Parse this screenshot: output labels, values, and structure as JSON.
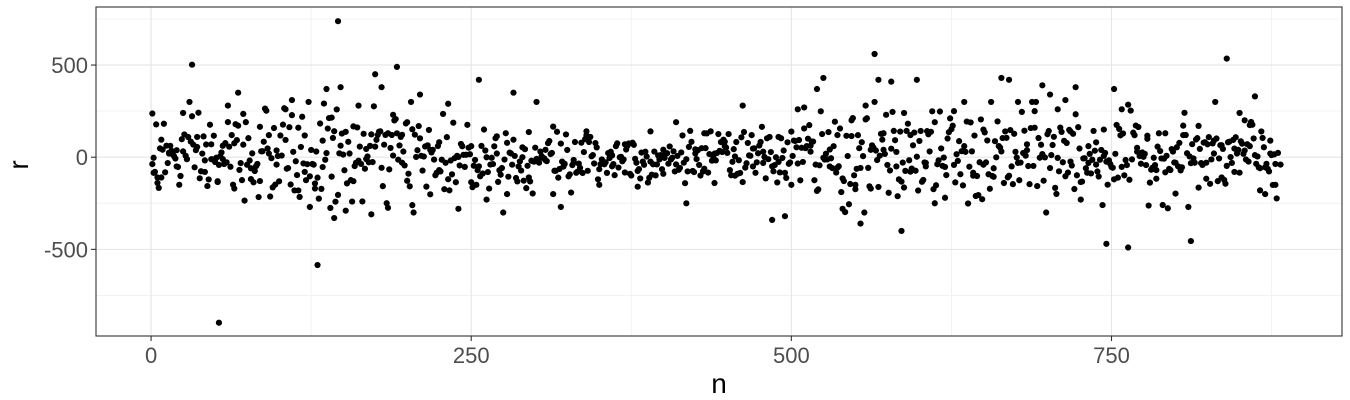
{
  "chart_data": {
    "type": "scatter",
    "title": "",
    "xlabel": "n",
    "ylabel": "r",
    "xlim": [
      -43,
      930
    ],
    "ylim": [
      -970,
      815
    ],
    "xticks": [
      0,
      250,
      500,
      750
    ],
    "xtick_labels": [
      "0",
      "250",
      "500",
      "750"
    ],
    "yticks": [
      -500,
      0,
      500
    ],
    "ytick_labels": [
      "-500",
      "0",
      "500"
    ],
    "grid": true,
    "legend": "none",
    "point_color": "#000000",
    "n_points": 880,
    "highlighted_points": [
      {
        "x": 1,
        "y": 237
      },
      {
        "x": 2,
        "y": -3
      },
      {
        "x": 5,
        "y": -110
      },
      {
        "x": 8,
        "y": 95
      },
      {
        "x": 14,
        "y": 20
      },
      {
        "x": 20,
        "y": -50
      },
      {
        "x": 25,
        "y": 240
      },
      {
        "x": 28,
        "y": -10
      },
      {
        "x": 32,
        "y": 502
      },
      {
        "x": 36,
        "y": 110
      },
      {
        "x": 42,
        "y": -80
      },
      {
        "x": 47,
        "y": 70
      },
      {
        "x": 52,
        "y": -130
      },
      {
        "x": 53,
        "y": -898
      },
      {
        "x": 56,
        "y": -10
      },
      {
        "x": 60,
        "y": 280
      },
      {
        "x": 65,
        "y": -170
      },
      {
        "x": 68,
        "y": 350
      },
      {
        "x": 72,
        "y": 235
      },
      {
        "x": 78,
        "y": -60
      },
      {
        "x": 85,
        "y": 165
      },
      {
        "x": 92,
        "y": 20
      },
      {
        "x": 98,
        "y": -40
      },
      {
        "x": 105,
        "y": 260
      },
      {
        "x": 110,
        "y": 310
      },
      {
        "x": 115,
        "y": 160
      },
      {
        "x": 120,
        "y": -80
      },
      {
        "x": 124,
        "y": -270
      },
      {
        "x": 128,
        "y": -170
      },
      {
        "x": 130,
        "y": -585
      },
      {
        "x": 134,
        "y": 90
      },
      {
        "x": 137,
        "y": 370
      },
      {
        "x": 141,
        "y": 215
      },
      {
        "x": 143,
        "y": -330
      },
      {
        "x": 146,
        "y": 738
      },
      {
        "x": 148,
        "y": 380
      },
      {
        "x": 152,
        "y": -290
      },
      {
        "x": 158,
        "y": -130
      },
      {
        "x": 162,
        "y": 280
      },
      {
        "x": 168,
        "y": -10
      },
      {
        "x": 172,
        "y": -310
      },
      {
        "x": 175,
        "y": 450
      },
      {
        "x": 180,
        "y": 380
      },
      {
        "x": 185,
        "y": 130
      },
      {
        "x": 189,
        "y": 230
      },
      {
        "x": 192,
        "y": 490
      },
      {
        "x": 196,
        "y": -30
      },
      {
        "x": 200,
        "y": 190
      },
      {
        "x": 204,
        "y": -260
      },
      {
        "x": 210,
        "y": 340
      },
      {
        "x": 218,
        "y": 40
      },
      {
        "x": 225,
        "y": -70
      },
      {
        "x": 232,
        "y": 290
      },
      {
        "x": 240,
        "y": -280
      },
      {
        "x": 250,
        "y": 60
      },
      {
        "x": 256,
        "y": 420
      },
      {
        "x": 262,
        "y": -230
      },
      {
        "x": 270,
        "y": 20
      },
      {
        "x": 278,
        "y": -200
      },
      {
        "x": 283,
        "y": 350
      },
      {
        "x": 290,
        "y": 0
      },
      {
        "x": 295,
        "y": -110
      },
      {
        "x": 301,
        "y": 300
      },
      {
        "x": 308,
        "y": 40
      },
      {
        "x": 314,
        "y": -200
      },
      {
        "x": 320,
        "y": -270
      },
      {
        "x": 330,
        "y": -30
      },
      {
        "x": 340,
        "y": 120
      },
      {
        "x": 350,
        "y": -150
      },
      {
        "x": 360,
        "y": 10
      },
      {
        "x": 370,
        "y": 70
      },
      {
        "x": 380,
        "y": -160
      },
      {
        "x": 390,
        "y": 140
      },
      {
        "x": 400,
        "y": -90
      },
      {
        "x": 410,
        "y": 190
      },
      {
        "x": 418,
        "y": -250
      },
      {
        "x": 425,
        "y": 20
      },
      {
        "x": 432,
        "y": 130
      },
      {
        "x": 440,
        "y": -140
      },
      {
        "x": 448,
        "y": 60
      },
      {
        "x": 456,
        "y": -100
      },
      {
        "x": 462,
        "y": 280
      },
      {
        "x": 470,
        "y": -50
      },
      {
        "x": 478,
        "y": 30
      },
      {
        "x": 485,
        "y": -340
      },
      {
        "x": 490,
        "y": 110
      },
      {
        "x": 495,
        "y": -320
      },
      {
        "x": 500,
        "y": -150
      },
      {
        "x": 505,
        "y": 260
      },
      {
        "x": 510,
        "y": 270
      },
      {
        "x": 515,
        "y": 30
      },
      {
        "x": 520,
        "y": 370
      },
      {
        "x": 525,
        "y": 430
      },
      {
        "x": 530,
        "y": -50
      },
      {
        "x": 536,
        "y": 120
      },
      {
        "x": 540,
        "y": -280
      },
      {
        "x": 547,
        "y": 200
      },
      {
        "x": 550,
        "y": -150
      },
      {
        "x": 554,
        "y": -360
      },
      {
        "x": 558,
        "y": 280
      },
      {
        "x": 562,
        "y": 40
      },
      {
        "x": 565,
        "y": 560
      },
      {
        "x": 568,
        "y": 420
      },
      {
        "x": 572,
        "y": 130
      },
      {
        "x": 578,
        "y": 410
      },
      {
        "x": 582,
        "y": -50
      },
      {
        "x": 586,
        "y": -400
      },
      {
        "x": 588,
        "y": 240
      },
      {
        "x": 593,
        "y": 120
      },
      {
        "x": 598,
        "y": 420
      },
      {
        "x": 605,
        "y": -50
      },
      {
        "x": 612,
        "y": 190
      },
      {
        "x": 620,
        "y": -220
      },
      {
        "x": 627,
        "y": 250
      },
      {
        "x": 635,
        "y": 60
      },
      {
        "x": 642,
        "y": -100
      },
      {
        "x": 650,
        "y": 150
      },
      {
        "x": 658,
        "y": -60
      },
      {
        "x": 664,
        "y": 430
      },
      {
        "x": 670,
        "y": 420
      },
      {
        "x": 677,
        "y": 300
      },
      {
        "x": 684,
        "y": 70
      },
      {
        "x": 690,
        "y": 250
      },
      {
        "x": 696,
        "y": 390
      },
      {
        "x": 702,
        "y": 340
      },
      {
        "x": 708,
        "y": 260
      },
      {
        "x": 714,
        "y": 310
      },
      {
        "x": 718,
        "y": 140
      },
      {
        "x": 722,
        "y": 380
      },
      {
        "x": 726,
        "y": -230
      },
      {
        "x": 732,
        "y": 60
      },
      {
        "x": 738,
        "y": -40
      },
      {
        "x": 744,
        "y": 150
      },
      {
        "x": 746,
        "y": -470
      },
      {
        "x": 752,
        "y": 370
      },
      {
        "x": 758,
        "y": 260
      },
      {
        "x": 763,
        "y": -490
      },
      {
        "x": 770,
        "y": 30
      },
      {
        "x": 778,
        "y": 100
      },
      {
        "x": 785,
        "y": -70
      },
      {
        "x": 792,
        "y": 130
      },
      {
        "x": 800,
        "y": -30
      },
      {
        "x": 806,
        "y": 120
      },
      {
        "x": 812,
        "y": -455
      },
      {
        "x": 818,
        "y": 170
      },
      {
        "x": 824,
        "y": -30
      },
      {
        "x": 830,
        "y": 20
      },
      {
        "x": 836,
        "y": -110
      },
      {
        "x": 840,
        "y": 535
      },
      {
        "x": 846,
        "y": -80
      },
      {
        "x": 850,
        "y": 240
      },
      {
        "x": 854,
        "y": 200
      },
      {
        "x": 858,
        "y": 60
      },
      {
        "x": 862,
        "y": 330
      },
      {
        "x": 866,
        "y": -180
      },
      {
        "x": 870,
        "y": -200
      },
      {
        "x": 874,
        "y": 90
      },
      {
        "x": 878,
        "y": -150
      },
      {
        "x": 882,
        "y": -40
      }
    ]
  }
}
